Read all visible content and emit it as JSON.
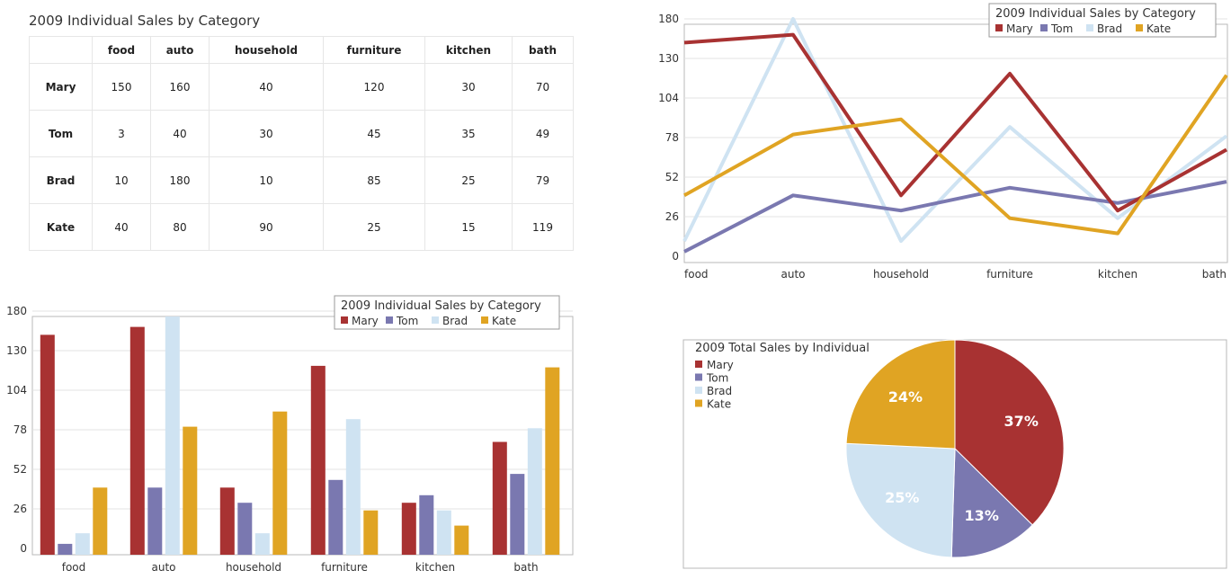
{
  "colors": {
    "Mary": "#a83232",
    "Tom": "#7a78b0",
    "Brad": "#cfe3f2",
    "Kate": "#e0a423"
  },
  "chart_data": [
    {
      "type": "table",
      "title": "2009 Individual Sales by Category",
      "columns": [
        "food",
        "auto",
        "household",
        "furniture",
        "kitchen",
        "bath"
      ],
      "rows": [
        {
          "name": "Mary",
          "values": [
            "150",
            "160",
            "40",
            "120",
            "30",
            "70"
          ]
        },
        {
          "name": "Tom",
          "values": [
            "3",
            "40",
            "30",
            "45",
            "35",
            "49"
          ]
        },
        {
          "name": "Brad",
          "values": [
            "10",
            "180",
            "10",
            "85",
            "25",
            "79"
          ]
        },
        {
          "name": "Kate",
          "values": [
            "40",
            "80",
            "90",
            "25",
            "15",
            "119"
          ]
        }
      ]
    },
    {
      "type": "line",
      "title": "2009 Individual Sales by Category",
      "categories": [
        "food",
        "auto",
        "household",
        "furniture",
        "kitchen",
        "bath"
      ],
      "yticks": [
        "0",
        "26",
        "52",
        "78",
        "104",
        "130",
        "180"
      ],
      "ylim": [
        0,
        180
      ],
      "legend": "top-right",
      "series": [
        {
          "name": "Mary",
          "values": [
            150,
            160,
            40,
            120,
            30,
            70
          ]
        },
        {
          "name": "Tom",
          "values": [
            3,
            40,
            30,
            45,
            35,
            49
          ]
        },
        {
          "name": "Brad",
          "values": [
            10,
            180,
            10,
            85,
            25,
            79
          ]
        },
        {
          "name": "Kate",
          "values": [
            40,
            80,
            90,
            25,
            15,
            119
          ]
        }
      ]
    },
    {
      "type": "bar",
      "title": "2009 Individual Sales by Category",
      "categories": [
        "food",
        "auto",
        "household",
        "furniture",
        "kitchen",
        "bath"
      ],
      "yticks": [
        "0",
        "26",
        "52",
        "78",
        "104",
        "130",
        "180"
      ],
      "ylim": [
        0,
        180
      ],
      "legend": "top-right",
      "series": [
        {
          "name": "Mary",
          "values": [
            150,
            160,
            40,
            120,
            30,
            70
          ]
        },
        {
          "name": "Tom",
          "values": [
            3,
            40,
            30,
            45,
            35,
            49
          ]
        },
        {
          "name": "Brad",
          "values": [
            10,
            180,
            10,
            85,
            25,
            79
          ]
        },
        {
          "name": "Kate",
          "values": [
            40,
            80,
            90,
            25,
            15,
            119
          ]
        }
      ]
    },
    {
      "type": "pie",
      "title": "2009 Total Sales by Individual",
      "legend": "top-left",
      "slices": [
        {
          "name": "Mary",
          "value": 37,
          "label": "37%"
        },
        {
          "name": "Tom",
          "value": 13,
          "label": "13%"
        },
        {
          "name": "Brad",
          "value": 25,
          "label": "25%"
        },
        {
          "name": "Kate",
          "value": 24,
          "label": "24%"
        }
      ]
    }
  ]
}
